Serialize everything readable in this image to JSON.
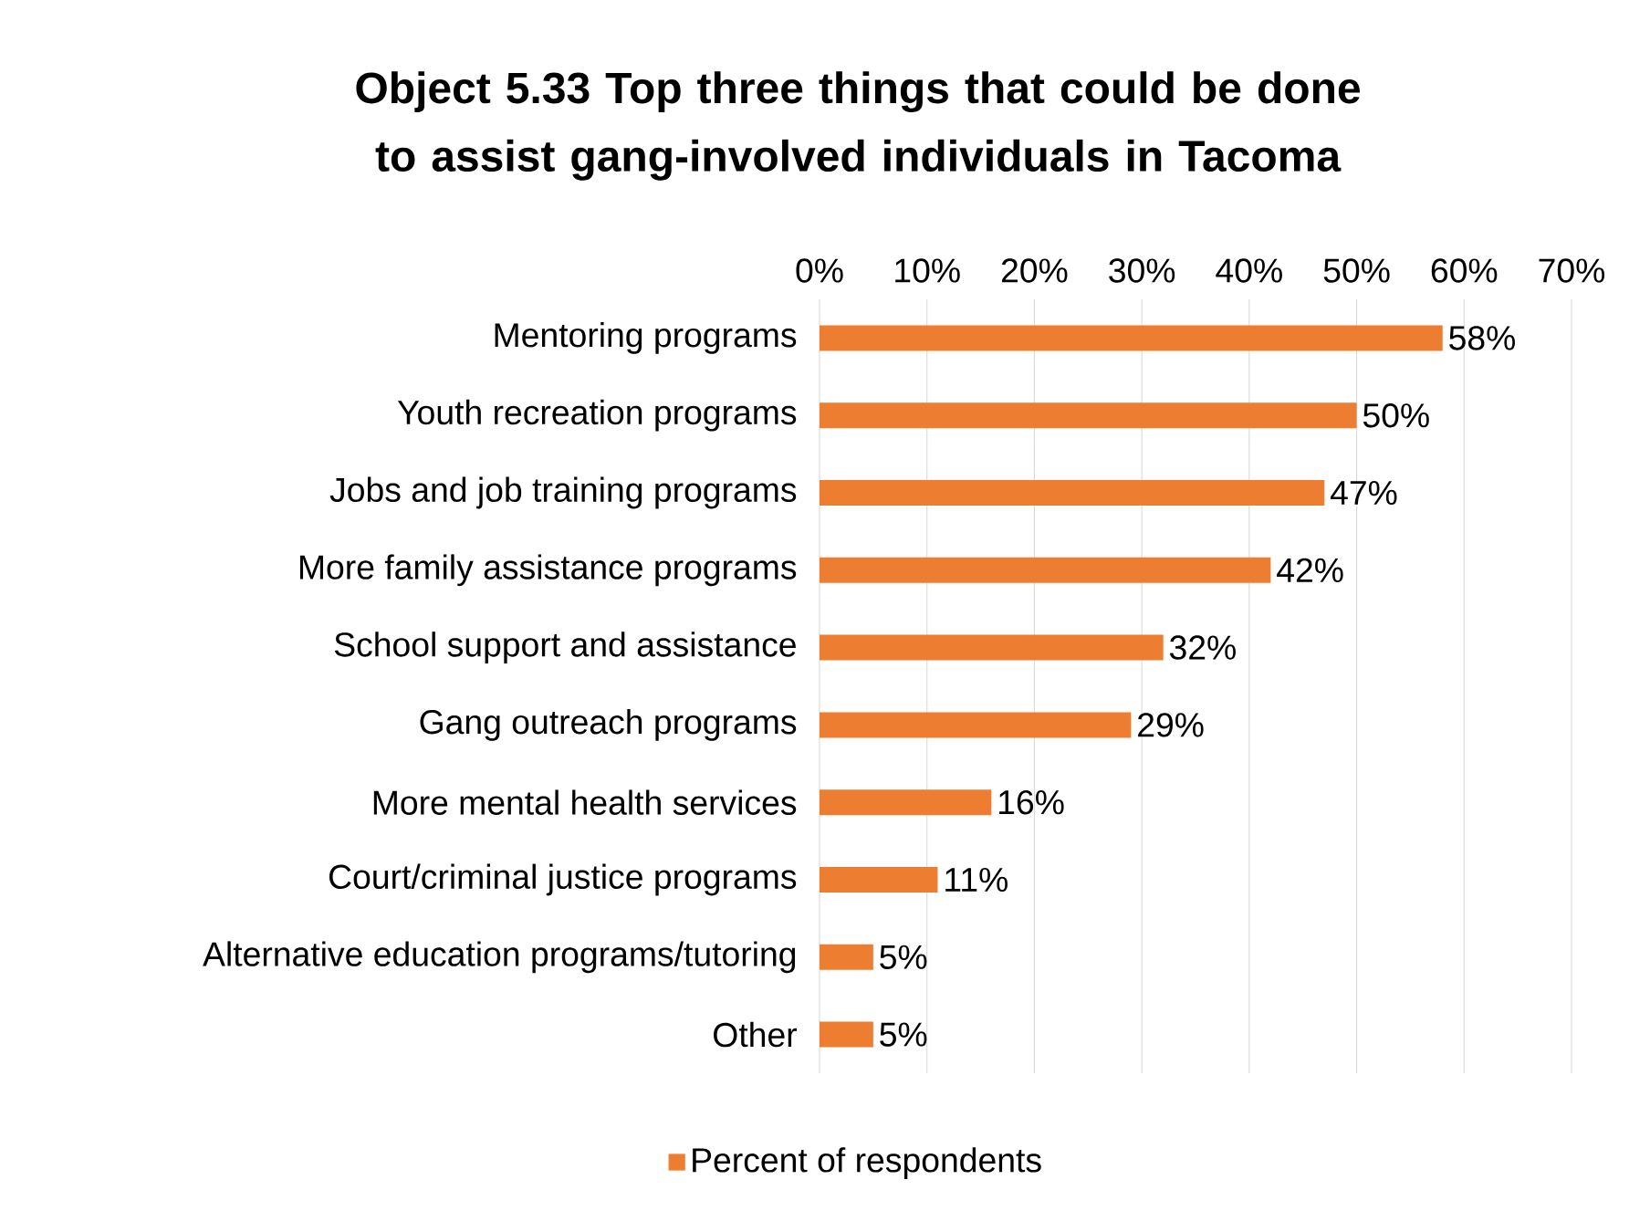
{
  "chart_data": {
    "type": "bar",
    "orientation": "horizontal",
    "title": "Object 5.33 Top three things that could be done to assist gang-involved individuals in Tacoma",
    "categories": [
      "Mentoring programs",
      "Youth recreation programs",
      "Jobs and job training programs",
      "More family assistance programs",
      "School support and assistance",
      "Gang outreach programs",
      "More mental health services",
      "Court/criminal justice programs",
      "Alternative education programs/tutoring",
      "Other"
    ],
    "series": [
      {
        "name": "Percent of respondents",
        "color": "#ed7d31",
        "values": [
          58,
          50,
          47,
          42,
          32,
          29,
          16,
          11,
          5,
          5
        ],
        "value_labels": [
          "58%",
          "50%",
          "47%",
          "42%",
          "32%",
          "29%",
          "16%",
          "11%",
          "5%",
          "5%"
        ]
      }
    ],
    "xlim": [
      0,
      70
    ],
    "xticks": [
      {
        "value": 0,
        "label": "0%"
      },
      {
        "value": 10,
        "label": "10%"
      },
      {
        "value": 20,
        "label": "20%"
      },
      {
        "value": 30,
        "label": "30%"
      },
      {
        "value": 40,
        "label": "40%"
      },
      {
        "value": 50,
        "label": "50%"
      },
      {
        "value": 60,
        "label": "60%"
      },
      {
        "value": 70,
        "label": "70%"
      }
    ],
    "grid": "x",
    "legend": "bottom"
  }
}
